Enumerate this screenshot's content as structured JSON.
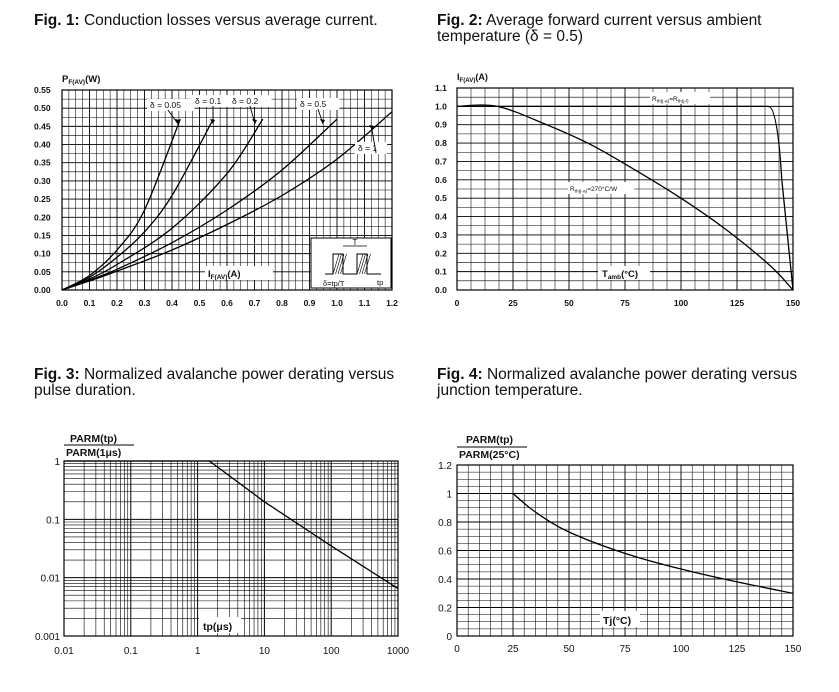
{
  "figures": [
    {
      "label": "Fig. 1:",
      "caption": "Conduction losses versus average current.",
      "chart_data": {
        "type": "line",
        "ylabel_main": "P",
        "ylabel_sub": "F(AV)",
        "ylabel_unit": "(W)",
        "xlabel_main": "I",
        "xlabel_sub": "F(AV)",
        "xlabel_unit": "(A)",
        "xlim": [
          0,
          1.2
        ],
        "ylim": [
          0,
          0.55
        ],
        "x_ticks": [
          "0.0",
          "0.1",
          "0.2",
          "0.3",
          "0.4",
          "0.5",
          "0.6",
          "0.7",
          "0.8",
          "0.9",
          "1.0",
          "1.1",
          "1.2"
        ],
        "y_ticks": [
          "0.00",
          "0.05",
          "0.10",
          "0.15",
          "0.20",
          "0.25",
          "0.30",
          "0.35",
          "0.40",
          "0.45",
          "0.50",
          "0.55"
        ],
        "inset_label_T": "T",
        "inset_label_delta": "δ=tp/T",
        "inset_label_tp": "tp",
        "series": [
          {
            "name": "δ = 0.05",
            "x": [
              0,
              0.1,
              0.2,
              0.3,
              0.43
            ],
            "y": [
              0,
              0.04,
              0.11,
              0.22,
              0.47
            ]
          },
          {
            "name": "δ = 0.1",
            "x": [
              0,
              0.1,
              0.2,
              0.3,
              0.4,
              0.55
            ],
            "y": [
              0,
              0.035,
              0.09,
              0.16,
              0.26,
              0.47
            ]
          },
          {
            "name": "δ = 0.2",
            "x": [
              0,
              0.1,
              0.2,
              0.4,
              0.6,
              0.73
            ],
            "y": [
              0,
              0.03,
              0.07,
              0.17,
              0.32,
              0.47
            ]
          },
          {
            "name": "δ = 0.5",
            "x": [
              0,
              0.1,
              0.2,
              0.4,
              0.6,
              0.8,
              1.0
            ],
            "y": [
              0,
              0.027,
              0.057,
              0.13,
              0.22,
              0.33,
              0.47
            ]
          },
          {
            "name": "δ = 1",
            "x": [
              0,
              0.1,
              0.2,
              0.4,
              0.6,
              0.8,
              1.0,
              1.2
            ],
            "y": [
              0,
              0.025,
              0.052,
              0.11,
              0.18,
              0.26,
              0.36,
              0.49
            ]
          }
        ]
      }
    },
    {
      "label": "Fig. 2:",
      "caption": "Average forward current versus ambient temperature (δ = 0.5)",
      "chart_data": {
        "type": "line",
        "ylabel_main": "I",
        "ylabel_sub": "F(AV)",
        "ylabel_unit": "(A)",
        "xlabel_main": "T",
        "xlabel_sub": "amb",
        "xlabel_unit": "(°C)",
        "xlim": [
          0,
          150
        ],
        "ylim": [
          0,
          1.1
        ],
        "x_ticks": [
          "0",
          "25",
          "50",
          "75",
          "100",
          "125",
          "150"
        ],
        "y_ticks": [
          "0.0",
          "0.1",
          "0.2",
          "0.3",
          "0.4",
          "0.5",
          "0.6",
          "0.7",
          "0.8",
          "0.9",
          "1.0",
          "1.1"
        ],
        "series": [
          {
            "name": "Rth(j-a)=Rth(j-l)",
            "x": [
              0,
              140,
              145,
              150
            ],
            "y": [
              1.0,
              1.0,
              0.6,
              0
            ]
          },
          {
            "name": "Rth(j-a)=270°C/W",
            "x": [
              0,
              18,
              40,
              60,
              80,
              100,
              120,
              140,
              150
            ],
            "y": [
              1.0,
              1.0,
              0.9,
              0.79,
              0.65,
              0.5,
              0.33,
              0.13,
              0
            ]
          }
        ],
        "annotation_1": "R",
        "annotation_1_sub": "th(j-a)",
        "annotation_1_eq": "=R",
        "annotation_1_sub2": "th(j-l)",
        "annotation_2": "R",
        "annotation_2_sub": "th(j-a)",
        "annotation_2_eq": "=270°C/W"
      }
    },
    {
      "label": "Fig. 3:",
      "caption": "Normalized avalanche power derating versus pulse duration.",
      "chart_data": {
        "type": "line",
        "ylabel_num": "PARM(tp)",
        "ylabel_den": "PARM(1μs)",
        "xlabel": "tp(μs)",
        "xscale": "log",
        "yscale": "log",
        "xlim": [
          0.01,
          1000
        ],
        "ylim": [
          0.001,
          1
        ],
        "x_ticks": [
          "0.01",
          "0.1",
          "1",
          "10",
          "100",
          "1000"
        ],
        "y_ticks": [
          "0.001",
          "0.01",
          "0.1",
          "1"
        ],
        "series": [
          {
            "name": "derating",
            "x": [
              0.01,
              1.5,
              10,
              100,
              1000
            ],
            "y": [
              1,
              1,
              0.2,
              0.035,
              0.0065
            ]
          }
        ]
      }
    },
    {
      "label": "Fig. 4:",
      "caption": "Normalized avalanche power derating versus junction temperature.",
      "chart_data": {
        "type": "line",
        "ylabel_num": "PARM(tp)",
        "ylabel_den": "PARM(25°C)",
        "xlabel": "Tj(°C)",
        "xlim": [
          0,
          150
        ],
        "ylim": [
          0,
          1.2
        ],
        "x_ticks": [
          "0",
          "25",
          "50",
          "75",
          "100",
          "125",
          "150"
        ],
        "y_ticks": [
          "0",
          "0.2",
          "0.4",
          "0.6",
          "0.8",
          "1",
          "1.2"
        ],
        "series": [
          {
            "name": "derating",
            "x": [
              25,
              35,
              50,
              75,
              100,
              125,
              150
            ],
            "y": [
              1.0,
              0.87,
              0.73,
              0.58,
              0.47,
              0.38,
              0.3
            ]
          }
        ]
      }
    }
  ]
}
